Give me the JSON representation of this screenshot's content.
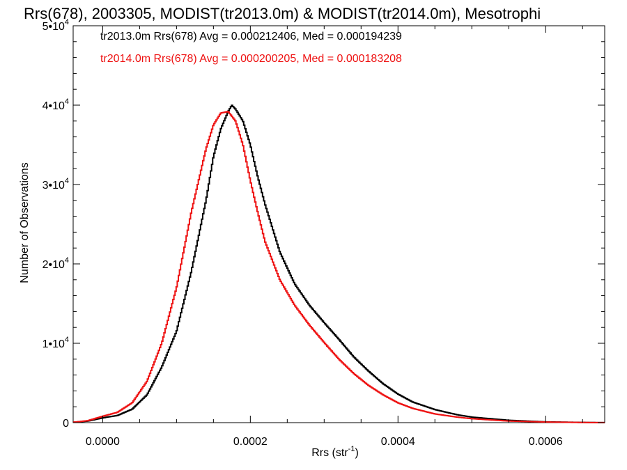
{
  "chart_data": {
    "type": "line",
    "title": "Rrs(678), 2003305, MODIST(tr2013.0m) & MODIST(tr2014.0m), Mesotrophi",
    "xlabel": "Rrs (str",
    "xlabel_sup": "-1",
    "xlabel_close": ")",
    "ylabel": "Number of Observations",
    "xlim": [
      -4e-05,
      0.00068
    ],
    "ylim": [
      0,
      50000
    ],
    "x_ticks": [
      0.0,
      0.0002,
      0.0004,
      0.0006
    ],
    "x_tick_labels": [
      "0.0000",
      "0.0002",
      "0.0004",
      "0.0006"
    ],
    "y_ticks": [
      0,
      10000,
      20000,
      30000,
      40000,
      50000
    ],
    "y_tick_labels": [
      {
        "base": "0",
        "exp": ""
      },
      {
        "base": "1•10",
        "exp": "4"
      },
      {
        "base": "2•10",
        "exp": "4"
      },
      {
        "base": "3•10",
        "exp": "4"
      },
      {
        "base": "4•10",
        "exp": "4"
      },
      {
        "base": "5•10",
        "exp": "4"
      }
    ],
    "grid": false,
    "legend_position": "top-left",
    "annotations": [
      {
        "text": "tr2013.0m Rrs(678) Avg = 0.000212406, Med = 0.000194239",
        "color": "#000000"
      },
      {
        "text": "tr2014.0m Rrs(678) Avg = 0.000200205, Med = 0.000183208",
        "color": "#ee1111"
      }
    ],
    "series": [
      {
        "color": "#000000",
        "style": "step",
        "x": [
          -4e-05,
          -2e-05,
          0.0,
          2e-05,
          4e-05,
          6e-05,
          8e-05,
          0.0001,
          0.00012,
          0.00014,
          0.00015,
          0.00016,
          0.00017,
          0.000175,
          0.00018,
          0.00019,
          0.0002,
          0.00021,
          0.00022,
          0.00024,
          0.00026,
          0.00028,
          0.0003,
          0.00032,
          0.00034,
          0.00036,
          0.00038,
          0.0004,
          0.00042,
          0.00045,
          0.00048,
          0.0005,
          0.00055,
          0.0006,
          0.00065,
          0.00068
        ],
        "y": [
          50,
          200,
          600,
          900,
          1700,
          3500,
          7000,
          11500,
          19000,
          28000,
          33500,
          37000,
          39200,
          40000,
          39500,
          38000,
          35000,
          31000,
          27500,
          21500,
          17500,
          14800,
          12600,
          10500,
          8300,
          6500,
          4900,
          3600,
          2600,
          1650,
          1000,
          700,
          300,
          100,
          30,
          5
        ]
      },
      {
        "color": "#ee1111",
        "style": "step",
        "x": [
          -4e-05,
          -2e-05,
          0.0,
          2e-05,
          4e-05,
          6e-05,
          8e-05,
          0.0001,
          0.00012,
          0.00014,
          0.00015,
          0.00016,
          0.00017,
          0.00018,
          0.00019,
          0.0002,
          0.00021,
          0.00022,
          0.00024,
          0.00026,
          0.00028,
          0.0003,
          0.00032,
          0.00034,
          0.00036,
          0.00038,
          0.0004,
          0.00042,
          0.00045,
          0.00048,
          0.0005,
          0.00055,
          0.0006,
          0.00065,
          0.00068
        ],
        "y": [
          50,
          250,
          800,
          1300,
          2500,
          5200,
          10000,
          17000,
          26500,
          34500,
          37500,
          39000,
          39200,
          38000,
          35000,
          30500,
          26500,
          22800,
          18000,
          14800,
          12300,
          10100,
          8000,
          6200,
          4700,
          3500,
          2500,
          1800,
          1100,
          700,
          500,
          200,
          80,
          20,
          5
        ]
      }
    ]
  }
}
